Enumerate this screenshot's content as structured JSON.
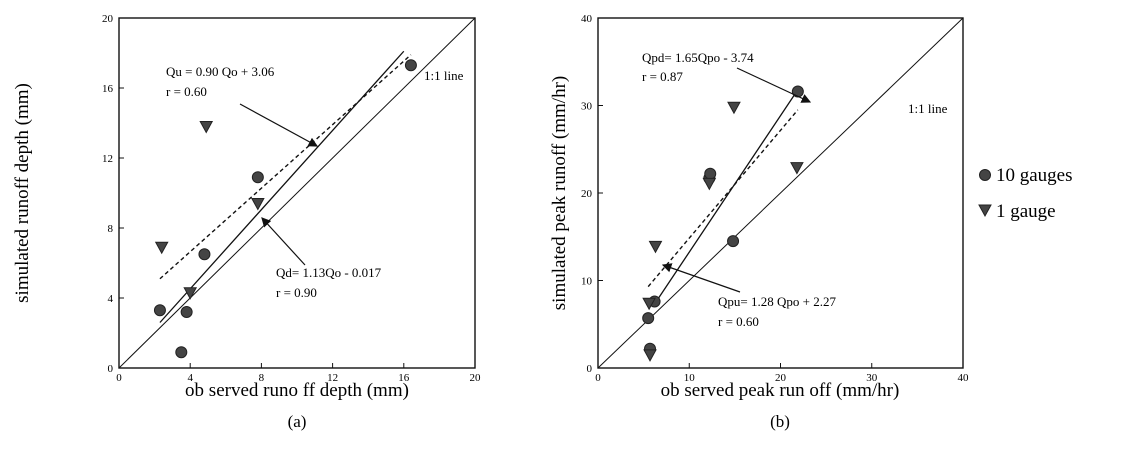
{
  "chart_data": [
    {
      "type": "scatter",
      "subcaption": "(a)",
      "xlabel": "ob served runo ff depth (mm)",
      "ylabel": "simulated runoff depth (mm)",
      "xlim": [
        0,
        20
      ],
      "ylim": [
        0,
        20
      ],
      "xticks": [
        0,
        4,
        8,
        12,
        16,
        20
      ],
      "yticks": [
        0,
        4,
        8,
        12,
        16,
        20
      ],
      "xtick_labels": [
        "0",
        "4",
        "8",
        "12",
        "16",
        "20"
      ],
      "ytick_labels": [
        "0",
        "4",
        "8",
        "12",
        "16",
        "20"
      ],
      "identity_label": "1:1 line",
      "series": [
        {
          "name": "10 gauges",
          "marker": "circle",
          "points": [
            [
              2.3,
              3.3
            ],
            [
              3.8,
              3.2
            ],
            [
              3.5,
              0.9
            ],
            [
              4.8,
              6.5
            ],
            [
              7.8,
              10.9
            ],
            [
              16.4,
              17.3
            ]
          ]
        },
        {
          "name": "1 gauge",
          "marker": "triangle",
          "points": [
            [
              2.4,
              6.9
            ],
            [
              4.0,
              4.3
            ],
            [
              4.9,
              13.8
            ],
            [
              7.8,
              9.4
            ]
          ]
        }
      ],
      "fits": [
        {
          "equation": "Qu = 0.90 Qo + 3.06",
          "r": "r = 0.60",
          "style": "dashed",
          "x": [
            2.3,
            16.4
          ],
          "y": [
            5.1,
            17.9
          ]
        },
        {
          "equation": "Qd= 1.13Qo - 0.017",
          "r": "r = 0.90",
          "style": "solid",
          "x": [
            2.3,
            16.0
          ],
          "y": [
            2.6,
            18.1
          ]
        }
      ]
    },
    {
      "type": "scatter",
      "subcaption": "(b)",
      "xlabel": "ob served peak run off (mm/hr)",
      "ylabel": "simulated peak runoff (mm/hr)",
      "xlim": [
        0,
        40
      ],
      "ylim": [
        0,
        40
      ],
      "xticks": [
        0,
        10,
        20,
        30,
        40
      ],
      "yticks": [
        0,
        10,
        20,
        30,
        40
      ],
      "xtick_labels": [
        "0",
        "10",
        "20",
        "30",
        "40"
      ],
      "ytick_labels": [
        "0",
        "10",
        "20",
        "30",
        "40"
      ],
      "identity_label": "1:1 line",
      "series": [
        {
          "name": "10 gauges",
          "marker": "circle",
          "points": [
            [
              5.5,
              5.7
            ],
            [
              5.7,
              2.2
            ],
            [
              6.2,
              7.6
            ],
            [
              12.2,
              21.7
            ],
            [
              12.3,
              22.2
            ],
            [
              14.8,
              14.5
            ],
            [
              21.9,
              31.6
            ]
          ]
        },
        {
          "name": "1 gauge",
          "marker": "triangle",
          "points": [
            [
              5.6,
              7.4
            ],
            [
              5.7,
              1.5
            ],
            [
              6.3,
              13.9
            ],
            [
              12.2,
              21.1
            ],
            [
              14.9,
              29.8
            ],
            [
              21.8,
              22.9
            ]
          ]
        }
      ],
      "fits": [
        {
          "equation": "Qpd= 1.65Qpo - 3.74",
          "r": "r = 0.87",
          "style": "solid",
          "x": [
            6.0,
            21.9
          ],
          "y": [
            7.0,
            31.8
          ]
        },
        {
          "equation": "Qpu= 1.28 Qpo + 2.27",
          "r": "r = 0.60",
          "style": "dashed",
          "x": [
            5.5,
            21.9
          ],
          "y": [
            9.3,
            29.5
          ]
        }
      ]
    }
  ],
  "legend": {
    "placement": "right",
    "items": [
      {
        "label": "10 gauges",
        "marker": "circle"
      },
      {
        "label": "1 gauge",
        "marker": "triangle"
      }
    ]
  }
}
